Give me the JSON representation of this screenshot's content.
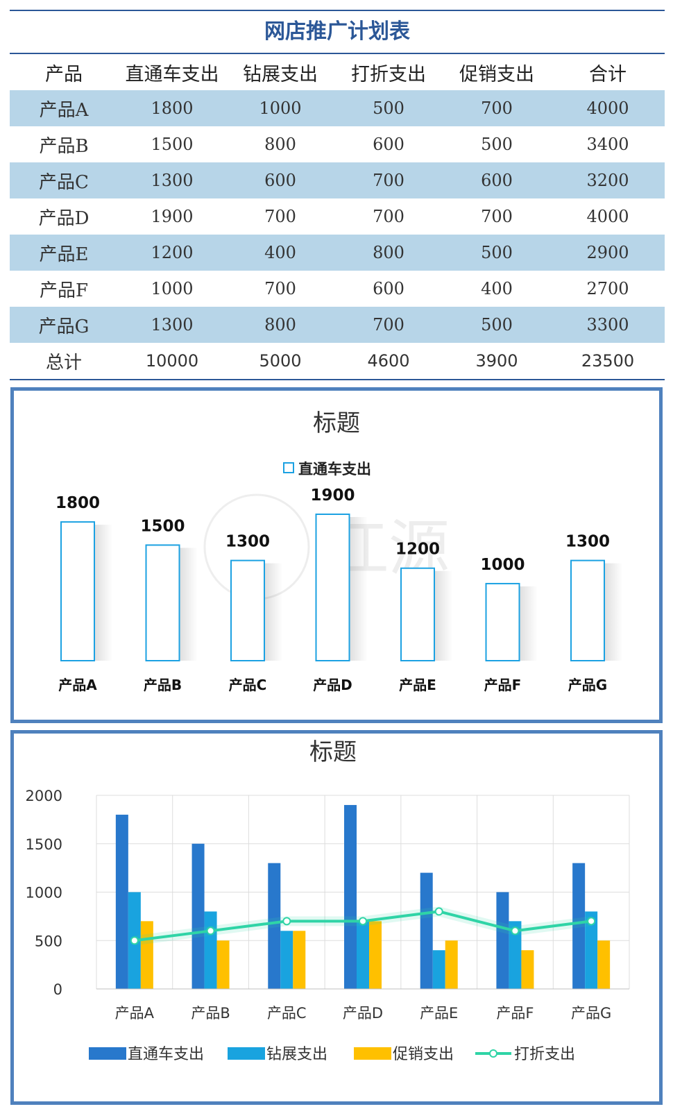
{
  "sheet": {
    "title": "网店推广计划表",
    "headers": [
      "产品",
      "直通车支出",
      "钻展支出",
      "打折支出",
      "促销支出",
      "合计"
    ],
    "rows": [
      {
        "name": "产品A",
        "cells": [
          "1800",
          "1000",
          "500",
          "700",
          "4000"
        ]
      },
      {
        "name": "产品B",
        "cells": [
          "1500",
          "800",
          "600",
          "500",
          "3400"
        ]
      },
      {
        "name": "产品C",
        "cells": [
          "1300",
          "600",
          "700",
          "600",
          "3200"
        ]
      },
      {
        "name": "产品D",
        "cells": [
          "1900",
          "700",
          "700",
          "700",
          "4000"
        ]
      },
      {
        "name": "产品E",
        "cells": [
          "1200",
          "400",
          "800",
          "500",
          "2900"
        ]
      },
      {
        "name": "产品F",
        "cells": [
          "1000",
          "700",
          "600",
          "400",
          "2700"
        ]
      },
      {
        "name": "产品G",
        "cells": [
          "1300",
          "800",
          "700",
          "500",
          "3300"
        ]
      }
    ],
    "total": {
      "name": "总计",
      "cells": [
        "10000",
        "5000",
        "4600",
        "3900",
        "23500"
      ]
    }
  },
  "colors": {
    "table_band": "#b7d5e8",
    "table_rule": "#2b5797",
    "frame_border": "#4f81bd",
    "outline_bar": "#1ba1e2",
    "series_zhitongche": "#2878cc",
    "series_zuanzhan": "#19a3df",
    "series_cuxiao": "#ffc000",
    "series_dazhe": "#2fd4a6",
    "gridline": "#dddddd"
  },
  "chart_data": [
    {
      "type": "bar",
      "title": "标题",
      "legend_position": "top",
      "categories": [
        "产品A",
        "产品B",
        "产品C",
        "产品D",
        "产品E",
        "产品F",
        "产品G"
      ],
      "series": [
        {
          "name": "直通车支出",
          "values": [
            1800,
            1500,
            1300,
            1900,
            1200,
            1000,
            1300
          ]
        }
      ],
      "data_labels": true,
      "grid": false,
      "watermark": "江源"
    },
    {
      "type": "bar",
      "title": "标题",
      "legend_position": "bottom",
      "categories": [
        "产品A",
        "产品B",
        "产品C",
        "产品D",
        "产品E",
        "产品F",
        "产品G"
      ],
      "ylim": [
        0,
        2000
      ],
      "yticks": [
        "0",
        "500",
        "1000",
        "1500",
        "2000"
      ],
      "grid": true,
      "series": [
        {
          "name": "直通车支出",
          "type": "bar",
          "values": [
            1800,
            1500,
            1300,
            1900,
            1200,
            1000,
            1300
          ]
        },
        {
          "name": "钻展支出",
          "type": "bar",
          "values": [
            1000,
            800,
            600,
            700,
            400,
            700,
            800
          ]
        },
        {
          "name": "促销支出",
          "type": "bar",
          "values": [
            700,
            500,
            600,
            700,
            500,
            400,
            500
          ]
        },
        {
          "name": "打折支出",
          "type": "line",
          "values": [
            500,
            600,
            700,
            700,
            800,
            600,
            700
          ]
        }
      ]
    }
  ]
}
